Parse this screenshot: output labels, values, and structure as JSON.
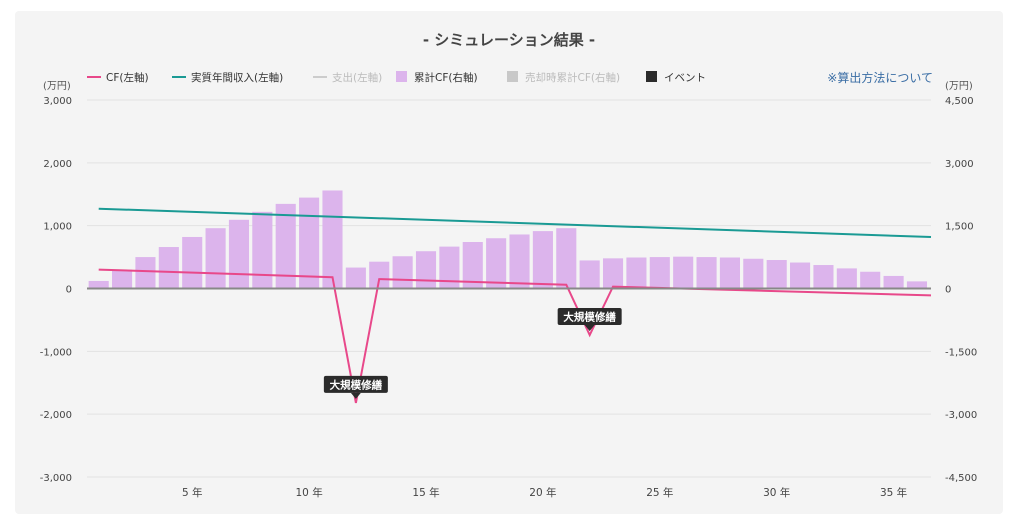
{
  "title": "- シミュレーション結果 -",
  "calc_link": "※算出方法について",
  "legend": [
    {
      "label": "CF(左軸)",
      "color": "#e8488a",
      "kind": "line",
      "active": true
    },
    {
      "label": "実質年間収入(左軸)",
      "color": "#1a9a94",
      "kind": "line",
      "active": true
    },
    {
      "label": "支出(左軸)",
      "color": "#cccccc",
      "kind": "line",
      "active": false
    },
    {
      "label": "累計CF(右軸)",
      "color": "#dcb4ec",
      "kind": "box",
      "active": true
    },
    {
      "label": "売却時累計CF(右軸)",
      "color": "#c8c8c8",
      "kind": "box",
      "active": false
    },
    {
      "label": "イベント",
      "color": "#2b2b2b",
      "kind": "box",
      "active": true
    }
  ],
  "chart_data": {
    "type": "bar+line",
    "x_unit": "年",
    "x_ticks": [
      5,
      10,
      15,
      20,
      25,
      30,
      35
    ],
    "x_range": [
      0.5,
      36.6
    ],
    "left_axis": {
      "unit": "(万円)",
      "min": -3000,
      "max": 3000,
      "ticks": [
        3000,
        2000,
        1000,
        0,
        -1000,
        -2000,
        -3000
      ],
      "tick_labels": [
        "3,000",
        "2,000",
        "1,000",
        "0",
        "-1,000",
        "-2,000",
        "-3,000"
      ]
    },
    "right_axis": {
      "unit": "(万円)",
      "min": -4500,
      "max": 4500,
      "ticks": [
        4500,
        3000,
        1500,
        0,
        -1500,
        -3000,
        -4500
      ],
      "tick_labels": [
        "4,500",
        "3,000",
        "1,500",
        "0",
        "-1,500",
        "-3,000",
        "-4,500"
      ]
    },
    "cumulative_cf": {
      "name": "累計CF(右軸)",
      "axis": "right",
      "color": "#dcb4ec",
      "years": [
        1,
        2,
        3,
        4,
        5,
        6,
        7,
        8,
        9,
        10,
        11,
        12,
        13,
        14,
        15,
        16,
        17,
        18,
        19,
        20,
        21,
        22,
        23,
        24,
        25,
        26,
        27,
        28,
        29,
        30,
        31,
        32,
        33,
        34,
        35,
        36
      ],
      "values": [
        180,
        450,
        750,
        990,
        1230,
        1440,
        1640,
        1830,
        2020,
        2170,
        2340,
        500,
        640,
        770,
        890,
        1000,
        1110,
        1200,
        1290,
        1370,
        1440,
        670,
        720,
        740,
        750,
        760,
        750,
        740,
        710,
        680,
        620,
        560,
        480,
        400,
        300,
        170
      ]
    },
    "annual_income": {
      "name": "実質年間収入(左軸)",
      "axis": "left",
      "color": "#1a9a94",
      "points": [
        [
          1,
          1270
        ],
        [
          36.6,
          820
        ]
      ]
    },
    "cf": {
      "name": "CF(左軸)",
      "axis": "left",
      "color": "#e8488a",
      "points": [
        [
          1,
          300
        ],
        [
          11,
          180
        ],
        [
          12,
          -1820
        ],
        [
          13,
          150
        ],
        [
          21,
          60
        ],
        [
          22,
          -740
        ],
        [
          23,
          30
        ],
        [
          36.6,
          -110
        ]
      ]
    },
    "events": [
      {
        "label": "大規模修繕",
        "year": 12,
        "value": -1820
      },
      {
        "label": "大規模修繕",
        "year": 22,
        "value": -740
      }
    ]
  }
}
